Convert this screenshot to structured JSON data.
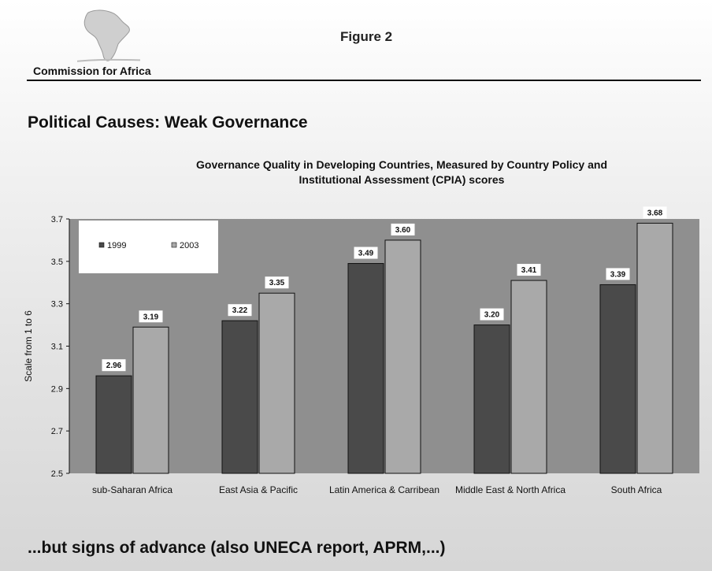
{
  "header": {
    "logo_text": "Commission for Africa",
    "figure_label": "Figure 2"
  },
  "slide": {
    "title": "Political Causes: Weak Governance",
    "footer": "...but signs of advance (also UNECA report, APRM,...)"
  },
  "icons": {
    "logo": "africa-map-icon"
  },
  "colors": {
    "plot_background": "#8f8f8f",
    "series_1999": "#4a4a4a",
    "series_2003": "#a9a9a9",
    "legend_background": "#ffffff"
  },
  "chart_data": {
    "type": "bar",
    "title_lines": [
      "Governance Quality in Developing Countries, Measured by Country Policy and",
      "Institutional Assessment (CPIA) scores"
    ],
    "ylabel": "Scale from 1 to 6",
    "xlabel": "",
    "ylim": [
      2.5,
      3.7
    ],
    "yticks": [
      2.5,
      2.7,
      2.9,
      3.1,
      3.3,
      3.5,
      3.7
    ],
    "grid": false,
    "legend_position": "top-left",
    "categories": [
      "sub-Saharan Africa",
      "East Asia & Pacific",
      "Latin America & Carribean",
      "Middle East & North Africa",
      "South Africa"
    ],
    "series": [
      {
        "name": "1999",
        "values": [
          2.96,
          3.22,
          3.49,
          3.2,
          3.39
        ],
        "labels": [
          "2.96",
          "3.22",
          "3.49",
          "3.20",
          "3.39"
        ]
      },
      {
        "name": "2003",
        "values": [
          3.19,
          3.35,
          3.6,
          3.41,
          3.68
        ],
        "labels": [
          "3.19",
          "3.35",
          "3.60",
          "3.41",
          "3.68"
        ]
      }
    ]
  }
}
